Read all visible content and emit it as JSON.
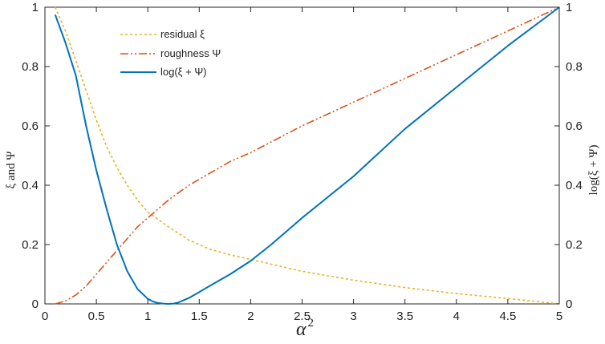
{
  "chart_data": {
    "type": "line",
    "xlabel": "α",
    "xlabel_sup": "2",
    "ylabel_left": "ξ and Ψ",
    "ylabel_right": "log(ξ + Ψ)",
    "xlim": [
      0,
      5
    ],
    "ylim_left": [
      0,
      1
    ],
    "ylim_right": [
      0,
      1
    ],
    "x_ticks": [
      "0",
      "0.5",
      "1",
      "1.5",
      "2",
      "2.5",
      "3",
      "3.5",
      "4",
      "4.5",
      "5"
    ],
    "y_ticks_left": [
      "0",
      "0.2",
      "0.4",
      "0.6",
      "0.8",
      "1"
    ],
    "y_ticks_right": [
      "0",
      "0.2",
      "0.4",
      "0.6",
      "0.8",
      "1"
    ],
    "grid": false,
    "legend_position": "top-left",
    "series": [
      {
        "name": "residual ξ",
        "color": "#EDB120",
        "style": "dotted",
        "axis": "left",
        "x": [
          0.1,
          0.2,
          0.3,
          0.4,
          0.5,
          0.6,
          0.7,
          0.8,
          0.9,
          1.0,
          1.2,
          1.4,
          1.6,
          1.8,
          2.0,
          2.5,
          3.0,
          3.5,
          4.0,
          4.5,
          5.0
        ],
        "y": [
          1.0,
          0.92,
          0.82,
          0.72,
          0.62,
          0.53,
          0.46,
          0.4,
          0.35,
          0.31,
          0.26,
          0.215,
          0.185,
          0.165,
          0.15,
          0.11,
          0.08,
          0.055,
          0.035,
          0.018,
          0.0
        ]
      },
      {
        "name": "roughness Ψ",
        "color": "#D95319",
        "style": "dashdotdot",
        "axis": "left",
        "x": [
          0.1,
          0.2,
          0.3,
          0.4,
          0.5,
          0.6,
          0.7,
          0.8,
          0.9,
          1.0,
          1.2,
          1.4,
          1.6,
          1.8,
          2.0,
          2.5,
          3.0,
          3.5,
          4.0,
          4.5,
          5.0
        ],
        "y": [
          0.0,
          0.01,
          0.03,
          0.06,
          0.1,
          0.14,
          0.18,
          0.22,
          0.26,
          0.29,
          0.35,
          0.4,
          0.44,
          0.48,
          0.51,
          0.6,
          0.68,
          0.76,
          0.84,
          0.92,
          1.0
        ]
      },
      {
        "name": "log(ξ + Ψ)",
        "color": "#0072BD",
        "style": "solid",
        "axis": "right",
        "x": [
          0.1,
          0.2,
          0.3,
          0.4,
          0.5,
          0.6,
          0.7,
          0.8,
          0.9,
          1.0,
          1.05,
          1.1,
          1.15,
          1.2,
          1.25,
          1.3,
          1.4,
          1.5,
          1.6,
          1.8,
          2.0,
          2.2,
          2.5,
          3.0,
          3.5,
          4.0,
          4.5,
          5.0
        ],
        "y": [
          0.975,
          0.88,
          0.77,
          0.6,
          0.45,
          0.32,
          0.2,
          0.11,
          0.05,
          0.017,
          0.008,
          0.003,
          0.001,
          0.0,
          0.001,
          0.005,
          0.02,
          0.04,
          0.06,
          0.1,
          0.145,
          0.2,
          0.29,
          0.43,
          0.59,
          0.73,
          0.87,
          1.0
        ]
      }
    ]
  }
}
